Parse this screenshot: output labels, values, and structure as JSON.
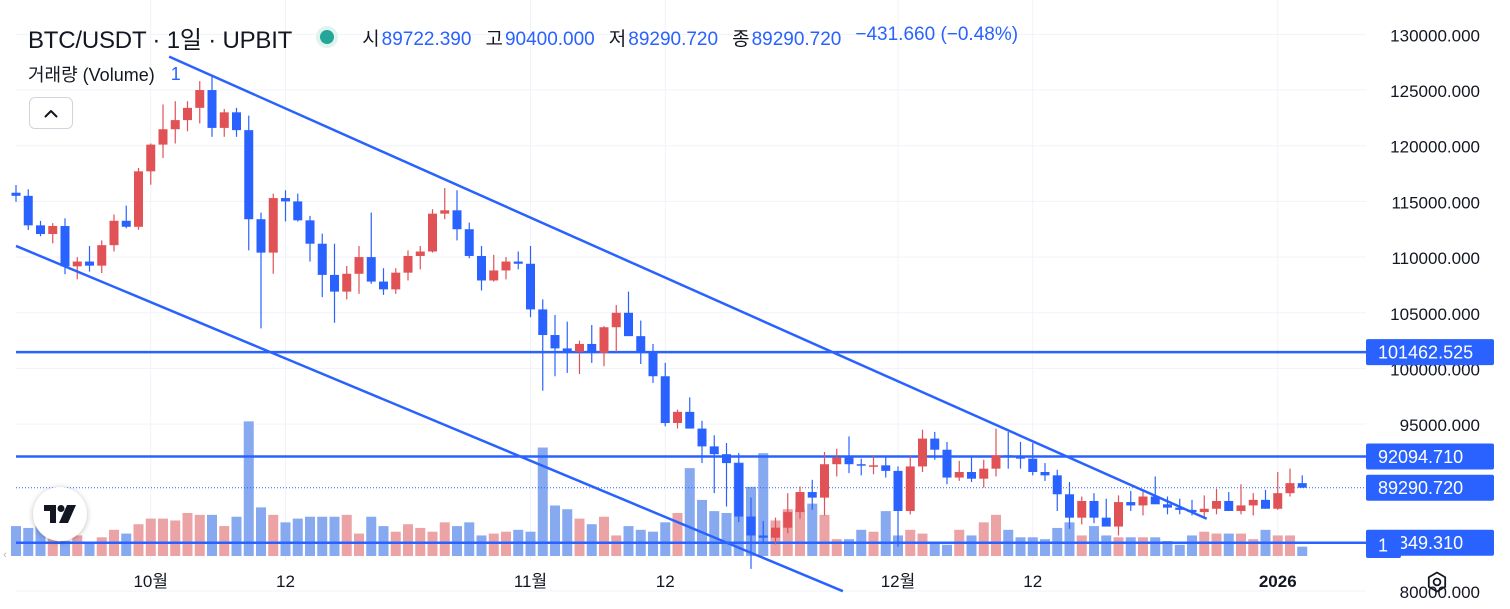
{
  "header": {
    "symbol": "BTC/USDT · 1일 · UPBIT",
    "open_label": "시",
    "open": "89722.390",
    "high_label": "고",
    "high": "90400.000",
    "low_label": "저",
    "low": "89290.720",
    "close_label": "종",
    "close": "89290.720",
    "change": "−431.660 (−0.48%)",
    "status_color": "#26a69a"
  },
  "volume_legend": {
    "label": "거래량 (Volume)",
    "value": "1"
  },
  "collapse_icon": "chevron-up-icon",
  "logo_icon": "tradingview-logo",
  "settings_icon": "gear-icon",
  "colors": {
    "up": "#e05256",
    "down": "#2962ff",
    "up_volume": "#eba3a6",
    "down_volume": "#86a9f0",
    "line": "#2962ff",
    "grid": "#f0f3fa"
  },
  "chart_data": {
    "type": "candlestick",
    "y_axis_ticks": [
      "130000.000",
      "125000.000",
      "120000.000",
      "115000.000",
      "110000.000",
      "105000.000",
      "100000.000",
      "95000.000",
      "80000.000"
    ],
    "y_range": [
      77500,
      131200
    ],
    "x_axis_labels": [
      {
        "label": "10월",
        "bar": 11,
        "bold": false
      },
      {
        "label": "12",
        "bar": 22,
        "bold": false
      },
      {
        "label": "11월",
        "bar": 42,
        "bold": false
      },
      {
        "label": "12",
        "bar": 53,
        "bold": false
      },
      {
        "label": "12월",
        "bar": 72,
        "bold": false
      },
      {
        "label": "12",
        "bar": 83,
        "bold": false
      },
      {
        "label": "2026",
        "bar": 103,
        "bold": true
      }
    ],
    "price_labels": [
      {
        "text": "101462.525",
        "price": 101462.525,
        "style": "line"
      },
      {
        "text": "92094.710",
        "price": 92094.71,
        "style": "line"
      },
      {
        "text": "89290.720",
        "price": 89290.72,
        "style": "last"
      },
      {
        "text": "84349.310",
        "price": 84349.31,
        "style": "line"
      },
      {
        "text": "1",
        "style": "volume"
      }
    ],
    "horizontal_lines": [
      101462.525,
      92094.71,
      84349.31
    ],
    "last_price": 89290.72,
    "trendlines": [
      {
        "from": [
          12.5,
          128000
        ],
        "to": [
          97.2,
          86500
        ]
      },
      {
        "from": [
          0,
          111000
        ],
        "to": [
          67.5,
          80000
        ]
      }
    ],
    "ohlc": [
      [
        115780,
        116470,
        114960,
        115500
      ],
      [
        115500,
        116090,
        112430,
        112850
      ],
      [
        112850,
        113250,
        111870,
        112070
      ],
      [
        112070,
        113050,
        111230,
        112790
      ],
      [
        112790,
        113480,
        108460,
        109170
      ],
      [
        109170,
        110000,
        108000,
        109600
      ],
      [
        109600,
        111000,
        108700,
        109230
      ],
      [
        109230,
        111500,
        108570,
        111070
      ],
      [
        111070,
        113820,
        110500,
        113260
      ],
      [
        113260,
        114620,
        112580,
        112720
      ],
      [
        112720,
        118000,
        112450,
        117700
      ],
      [
        117700,
        120200,
        116500,
        120100
      ],
      [
        120100,
        123700,
        118900,
        121480
      ],
      [
        121480,
        124000,
        120200,
        122300
      ],
      [
        122300,
        124000,
        121300,
        123400
      ],
      [
        123400,
        125800,
        122000,
        125000
      ],
      [
        125000,
        126200,
        120800,
        121600
      ],
      [
        121600,
        123300,
        120800,
        123000
      ],
      [
        123000,
        123400,
        120800,
        121400
      ],
      [
        121400,
        122700,
        110600,
        113400
      ],
      [
        113400,
        114000,
        103600,
        110400
      ],
      [
        110400,
        115700,
        108500,
        115300
      ],
      [
        115300,
        116000,
        113200,
        115000
      ],
      [
        115000,
        115700,
        113200,
        113300
      ],
      [
        113300,
        113700,
        109600,
        111200
      ],
      [
        111200,
        112100,
        106400,
        108400
      ],
      [
        108400,
        111200,
        104100,
        106900
      ],
      [
        106900,
        109200,
        106200,
        108500
      ],
      [
        108500,
        111000,
        106700,
        110000
      ],
      [
        110000,
        114000,
        107600,
        107800
      ],
      [
        107800,
        109000,
        106600,
        107100
      ],
      [
        107100,
        109000,
        106700,
        108600
      ],
      [
        108600,
        110600,
        107900,
        110100
      ],
      [
        110100,
        111000,
        108900,
        110500
      ],
      [
        110500,
        114300,
        110400,
        113900
      ],
      [
        113900,
        116200,
        113400,
        114200
      ],
      [
        114200,
        116000,
        111500,
        112500
      ],
      [
        112500,
        113100,
        109900,
        110100
      ],
      [
        110100,
        111000,
        107000,
        107900
      ],
      [
        107900,
        110200,
        107800,
        108800
      ],
      [
        108800,
        110000,
        108000,
        109600
      ],
      [
        109600,
        110500,
        108900,
        109400
      ],
      [
        109400,
        111000,
        104600,
        105300
      ],
      [
        105300,
        106200,
        98000,
        103000
      ],
      [
        103000,
        104800,
        99300,
        101800
      ],
      [
        101800,
        104200,
        99600,
        101500
      ],
      [
        101500,
        102500,
        99500,
        102200
      ],
      [
        102200,
        103900,
        100500,
        101400
      ],
      [
        101400,
        103800,
        100200,
        103700
      ],
      [
        103700,
        105700,
        101500,
        105000
      ],
      [
        105000,
        106900,
        103000,
        102900
      ],
      [
        102900,
        104300,
        100400,
        101400
      ],
      [
        101400,
        102200,
        98700,
        99300
      ],
      [
        99300,
        100500,
        94800,
        95100
      ],
      [
        95100,
        96300,
        94600,
        96100
      ],
      [
        96100,
        97400,
        94600,
        94600
      ],
      [
        94600,
        95300,
        91500,
        93000
      ],
      [
        93000,
        94000,
        88800,
        92300
      ],
      [
        92300,
        93300,
        87600,
        91500
      ],
      [
        91500,
        92400,
        86200,
        86700
      ],
      [
        86700,
        88400,
        82000,
        85000
      ],
      [
        85000,
        86300,
        84400,
        84800
      ],
      [
        84800,
        86600,
        84200,
        85700
      ],
      [
        85700,
        88800,
        85200,
        87100
      ],
      [
        87100,
        89400,
        86500,
        88900
      ],
      [
        88900,
        90000,
        87300,
        88400
      ],
      [
        88400,
        92500,
        86800,
        91400
      ],
      [
        91400,
        92800,
        90300,
        92000
      ],
      [
        92000,
        93900,
        90600,
        91400
      ],
      [
        91400,
        91900,
        90400,
        91300
      ],
      [
        91300,
        92200,
        90500,
        91300
      ],
      [
        91300,
        92000,
        90200,
        90800
      ],
      [
        90800,
        91200,
        84000,
        87200
      ],
      [
        87200,
        92200,
        86900,
        91200
      ],
      [
        91200,
        94500,
        90700,
        93700
      ],
      [
        93700,
        94300,
        91800,
        92700
      ],
      [
        92700,
        93400,
        89600,
        90200
      ],
      [
        90200,
        91700,
        89900,
        90700
      ],
      [
        90700,
        92000,
        89800,
        90100
      ],
      [
        90100,
        91800,
        89300,
        91000
      ],
      [
        91000,
        94600,
        90300,
        92200
      ],
      [
        92200,
        94300,
        91000,
        92100
      ],
      [
        92100,
        93400,
        91000,
        91900
      ],
      [
        91900,
        93300,
        90400,
        90700
      ],
      [
        90700,
        91500,
        89900,
        90400
      ],
      [
        90400,
        90900,
        87200,
        88700
      ],
      [
        88700,
        89800,
        85600,
        86600
      ],
      [
        86600,
        88500,
        86000,
        88100
      ],
      [
        88100,
        88800,
        86100,
        86600
      ],
      [
        86600,
        88300,
        85900,
        85800
      ],
      [
        85800,
        88600,
        85000,
        88000
      ],
      [
        88000,
        89000,
        87200,
        87700
      ],
      [
        87700,
        89100,
        86800,
        88500
      ],
      [
        88500,
        90300,
        88100,
        87800
      ],
      [
        87800,
        88500,
        86900,
        87500
      ],
      [
        87500,
        88300,
        86900,
        87300
      ],
      [
        87300,
        88200,
        86800,
        87100
      ],
      [
        87100,
        88600,
        86700,
        87400
      ],
      [
        87400,
        89200,
        86900,
        88100
      ],
      [
        88100,
        88900,
        87300,
        87200
      ],
      [
        87200,
        89600,
        86900,
        87700
      ],
      [
        87700,
        88800,
        86800,
        88200
      ],
      [
        88200,
        89100,
        87400,
        87400
      ],
      [
        87400,
        90700,
        87300,
        88800
      ],
      [
        88800,
        91000,
        88500,
        89700
      ],
      [
        89700,
        90400,
        89290,
        89290
      ]
    ],
    "volume": [
      16,
      15,
      20,
      14,
      8,
      11,
      7,
      10,
      14,
      12,
      17,
      20,
      20,
      19,
      23,
      22,
      22,
      16,
      21,
      72,
      26,
      22,
      18,
      20,
      21,
      21,
      21,
      22,
      12,
      21,
      16,
      13,
      17,
      15,
      13,
      18,
      16,
      18,
      11,
      12,
      13,
      14,
      13,
      58,
      27,
      25,
      20,
      17,
      21,
      11,
      16,
      14,
      13,
      18,
      23,
      47,
      30,
      24,
      23,
      50,
      37,
      55,
      19,
      25,
      25,
      28,
      22,
      9,
      9,
      14,
      13,
      24,
      11,
      14,
      12,
      7,
      6,
      14,
      11,
      18,
      22,
      14,
      10,
      10,
      9,
      15,
      18,
      11,
      16,
      11,
      10,
      10,
      10,
      10,
      8,
      6,
      11,
      13,
      12,
      12,
      12,
      9,
      14,
      11,
      11,
      5
    ]
  }
}
